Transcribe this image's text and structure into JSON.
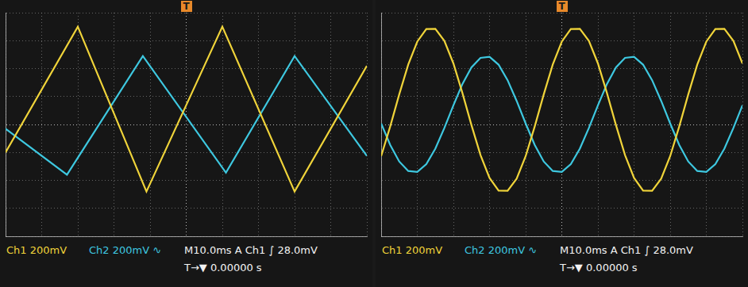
{
  "chart_data": [
    {
      "type": "line",
      "annotations": [
        {
          "text": "T",
          "x": 0
        },
        {
          "text": "Ch1 200mV"
        },
        {
          "text": "Ch2 200mV ∿"
        },
        {
          "text": "M10.0ms A Ch1 ∫ 28.0mV"
        },
        {
          "text": "T→▼ 0.00000 s"
        }
      ],
      "xlim": [
        -50,
        50
      ],
      "xticks": [
        -50,
        -40,
        -30,
        -20,
        -10,
        0,
        10,
        20,
        30,
        40,
        50
      ],
      "ylim": [
        -800,
        800
      ],
      "yticks": [
        -800,
        -600,
        -400,
        -200,
        0,
        200,
        400,
        600,
        800
      ],
      "grid": true,
      "tick_labels": false,
      "series": [
        {
          "name": "Ch1",
          "color": "#f0d43a",
          "x": [
            -50,
            -30,
            -11,
            10,
            30,
            50
          ],
          "values": [
            -200,
            700,
            -480,
            700,
            -480,
            420
          ]
        },
        {
          "name": "Ch2",
          "color": "#3ec8e0",
          "x": [
            -50,
            -33,
            -12,
            11,
            30,
            50
          ],
          "values": [
            -30,
            -360,
            490,
            -345,
            490,
            -225
          ]
        }
      ]
    },
    {
      "type": "line",
      "annotations": [
        {
          "text": "T",
          "x": 0
        },
        {
          "text": "Ch1 200mV"
        },
        {
          "text": "Ch2 200mV ∿"
        },
        {
          "text": "M10.0ms A Ch1 ∫ 28.0mV"
        },
        {
          "text": "T→▼ 0.00000 s"
        }
      ],
      "xlim": [
        -50,
        50
      ],
      "xticks": [
        -50,
        -40,
        -30,
        -20,
        -10,
        0,
        10,
        20,
        30,
        40,
        50
      ],
      "ylim": [
        -800,
        800
      ],
      "yticks": [
        -800,
        -600,
        -400,
        -200,
        0,
        200,
        400,
        600,
        800
      ],
      "grid": true,
      "tick_labels": false,
      "x": [
        -50,
        -47.5,
        -45,
        -42.5,
        -40,
        -37.5,
        -35,
        -32.5,
        -30,
        -27.5,
        -25,
        -22.5,
        -20,
        -17.5,
        -15,
        -12.5,
        -10,
        -7.5,
        -5,
        -2.5,
        0,
        2.5,
        5,
        7.5,
        10,
        12.5,
        15,
        17.5,
        20,
        22.5,
        25,
        27.5,
        30,
        32.5,
        35,
        37.5,
        40,
        42.5,
        45,
        47.5,
        50
      ],
      "series": [
        {
          "name": "Ch1",
          "color": "#f0d43a",
          "values": [
            -227,
            -15,
            215,
            429,
            593,
            683,
            684,
            598,
            437,
            225,
            -5,
            -219,
            -383,
            -473,
            -474,
            -388,
            -227,
            -15,
            215,
            429,
            593,
            683,
            684,
            598,
            437,
            225,
            -5,
            -219,
            -383,
            -473,
            -474,
            -388,
            -227,
            -15,
            215,
            429,
            593,
            683,
            684,
            598,
            437
          ]
        },
        {
          "name": "Ch2",
          "color": "#3ec8e0",
          "values": [
            7,
            -146,
            -265,
            -333,
            -340,
            -284,
            -173,
            -25,
            137,
            290,
            409,
            477,
            484,
            428,
            317,
            169,
            7,
            -146,
            -265,
            -333,
            -340,
            -284,
            -173,
            -25,
            137,
            290,
            409,
            477,
            484,
            428,
            317,
            169,
            7,
            -146,
            -265,
            -333,
            -340,
            -284,
            -173,
            -25,
            137
          ]
        }
      ]
    }
  ]
}
